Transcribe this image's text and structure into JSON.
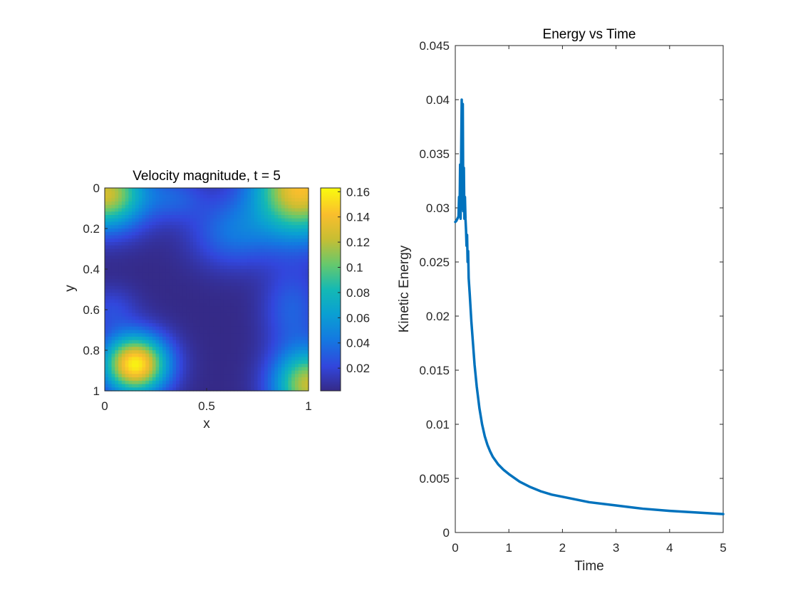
{
  "colors": {
    "line": "#0072BD",
    "axis": "#262626",
    "background": "#ffffff"
  },
  "chart_data": [
    {
      "type": "heatmap",
      "title": "Velocity magnitude, t = 5",
      "xlabel": "x",
      "ylabel": "y",
      "xlim": [
        0,
        1
      ],
      "ylim": [
        0,
        1
      ],
      "y_direction": "reversed",
      "x_ticks": [
        "0",
        "0.5",
        "1"
      ],
      "y_ticks": [
        "0",
        "0.2",
        "0.4",
        "0.6",
        "0.8",
        "1"
      ],
      "colorbar": {
        "colormap": "parula",
        "range": [
          0.002,
          0.163
        ],
        "ticks": [
          "0.02",
          "0.04",
          "0.06",
          "0.08",
          "0.1",
          "0.12",
          "0.14",
          "0.16"
        ]
      },
      "features": [
        {
          "x": 0.15,
          "y": 0.87,
          "sx": 0.11,
          "sy": 0.1,
          "amp": 0.158
        },
        {
          "x": 0.0,
          "y": 0.03,
          "sx": 0.14,
          "sy": 0.12,
          "amp": 0.125
        },
        {
          "x": 0.96,
          "y": 0.0,
          "sx": 0.16,
          "sy": 0.17,
          "amp": 0.14
        },
        {
          "x": 1.0,
          "y": 0.97,
          "sx": 0.12,
          "sy": 0.12,
          "amp": 0.12
        },
        {
          "x": 0.62,
          "y": 0.22,
          "sx": 0.14,
          "sy": 0.12,
          "amp": 0.035
        },
        {
          "x": 0.35,
          "y": 0.05,
          "sx": 0.1,
          "sy": 0.08,
          "amp": 0.025
        },
        {
          "x": 0.92,
          "y": 0.6,
          "sx": 0.1,
          "sy": 0.14,
          "amp": 0.03
        },
        {
          "x": 0.03,
          "y": 0.6,
          "sx": 0.09,
          "sy": 0.08,
          "amp": 0.02
        }
      ]
    },
    {
      "type": "line",
      "title": "Energy vs Time",
      "xlabel": "Time",
      "ylabel": "Kinetic Energy",
      "xlim": [
        0,
        5
      ],
      "ylim": [
        0,
        0.045
      ],
      "x_ticks": [
        "0",
        "1",
        "2",
        "3",
        "4",
        "5"
      ],
      "y_ticks": [
        "0",
        "0.005",
        "0.01",
        "0.015",
        "0.02",
        "0.025",
        "0.03",
        "0.035",
        "0.04",
        "0.045"
      ],
      "series": [
        {
          "x": [
            0,
            0.02,
            0.04,
            0.06,
            0.07,
            0.08,
            0.09,
            0.1,
            0.11,
            0.12,
            0.13,
            0.14,
            0.15,
            0.16,
            0.17,
            0.18,
            0.19,
            0.2,
            0.21,
            0.22,
            0.23,
            0.24,
            0.25,
            0.27,
            0.3,
            0.33,
            0.36,
            0.4,
            0.45,
            0.5,
            0.55,
            0.6,
            0.65,
            0.7,
            0.8,
            0.9,
            1.0,
            1.2,
            1.4,
            1.6,
            1.8,
            2.0,
            2.5,
            3.0,
            3.5,
            4.0,
            4.5,
            5.0
          ],
          "y": [
            0.0287,
            0.0288,
            0.029,
            0.0292,
            0.031,
            0.0295,
            0.034,
            0.029,
            0.0352,
            0.04,
            0.0299,
            0.0396,
            0.0297,
            0.0337,
            0.029,
            0.031,
            0.029,
            0.028,
            0.0265,
            0.0275,
            0.025,
            0.026,
            0.0235,
            0.022,
            0.0195,
            0.0175,
            0.0155,
            0.0135,
            0.0115,
            0.01,
            0.0089,
            0.0081,
            0.0075,
            0.007,
            0.0063,
            0.0058,
            0.0054,
            0.0047,
            0.0042,
            0.0038,
            0.0035,
            0.0033,
            0.0028,
            0.0025,
            0.0022,
            0.002,
            0.00185,
            0.0017
          ]
        }
      ]
    }
  ]
}
